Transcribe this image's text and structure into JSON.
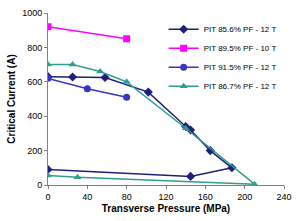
{
  "chart_data": {
    "type": "line",
    "x_label": "Transverse Pressure (MPa)",
    "y_label": "Critical Current (A)",
    "xlim": [
      0,
      240
    ],
    "xticks": [
      0,
      40,
      80,
      120,
      160,
      200,
      240
    ],
    "ylim": [
      0,
      1000
    ],
    "yticks": [
      0,
      200,
      400,
      600,
      800,
      1000
    ],
    "grid": false,
    "legend": "top right",
    "series": [
      {
        "name": "PIT 85.6% PF - 12 T",
        "color": "#1f1f7a",
        "marker": "diamond",
        "x": [
          0,
          25,
          58,
          102,
          140,
          145,
          165,
          187,
          145,
          0
        ],
        "values": [
          630,
          628,
          625,
          540,
          340,
          320,
          200,
          100,
          50,
          90
        ]
      },
      {
        "name": "PIT 89.5% PF - 10 T",
        "color": "#ff00ff",
        "marker": "square",
        "x": [
          0,
          80
        ],
        "values": [
          920,
          850
        ]
      },
      {
        "name": "PIT 91.5% PF - 12 T",
        "color": "#3535c8",
        "marker": "circle",
        "x": [
          0,
          40,
          80
        ],
        "values": [
          620,
          560,
          510
        ]
      },
      {
        "name": "PIT 86.7% PF - 12 T",
        "color": "#2e9e8e",
        "marker": "triangle",
        "x": [
          0,
          25,
          53,
          80,
          140,
          210,
          30,
          0
        ],
        "values": [
          700,
          700,
          660,
          600,
          330,
          5,
          45,
          55
        ]
      }
    ]
  }
}
